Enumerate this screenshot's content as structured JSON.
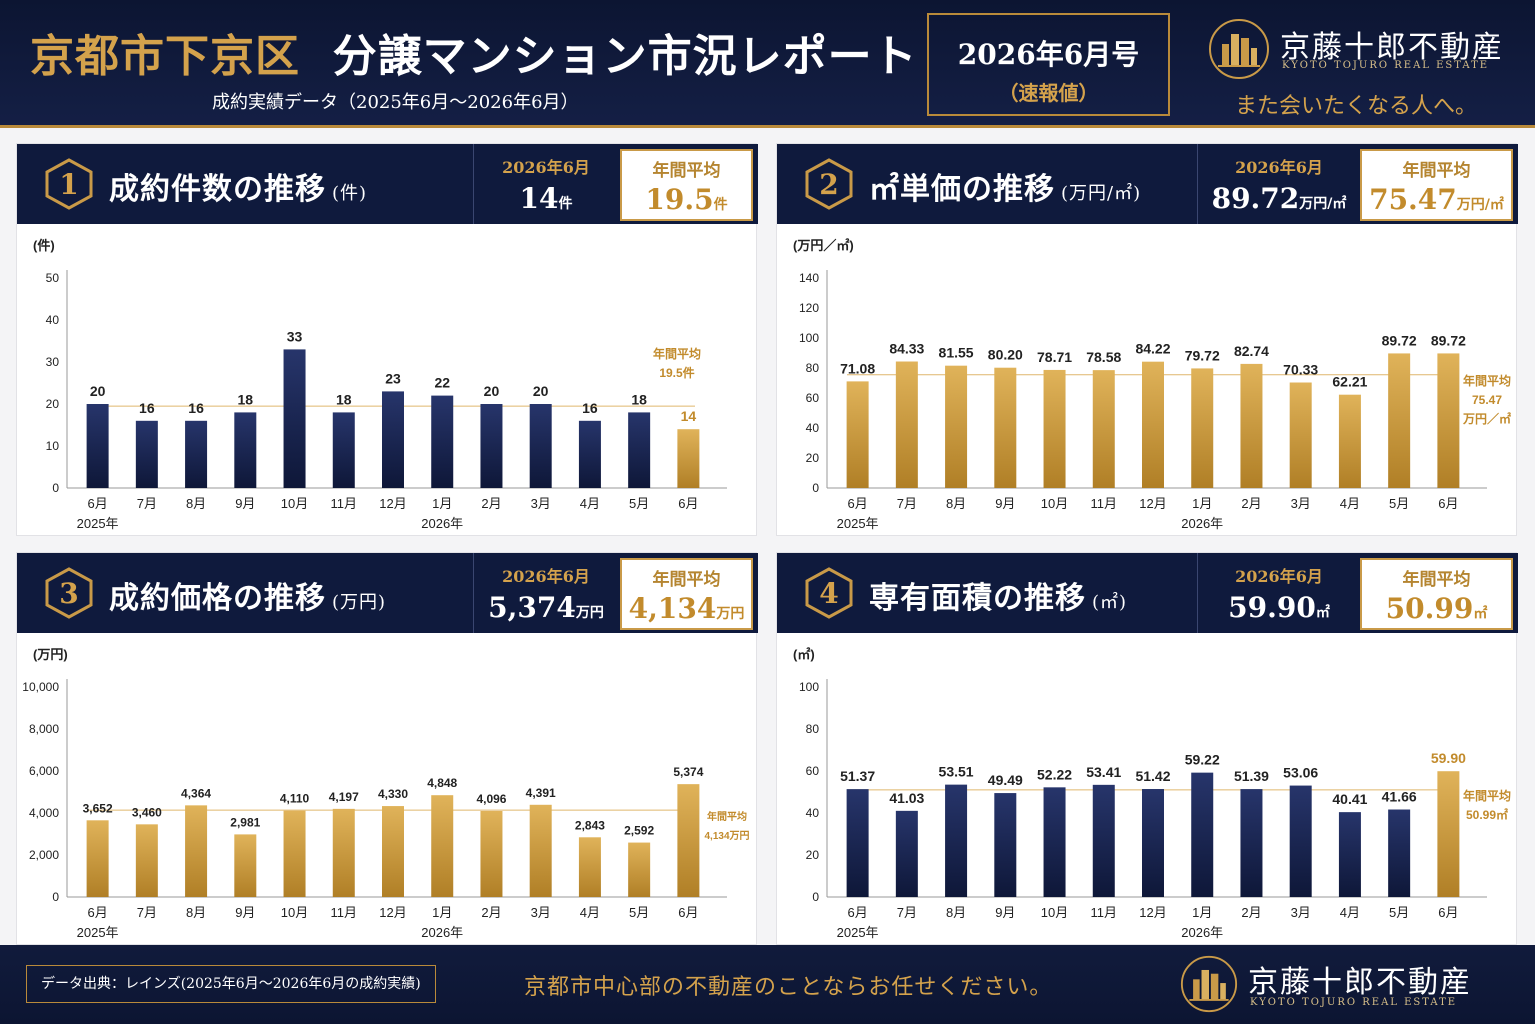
{
  "header": {
    "title_area": "京都市下京区",
    "title_main": "分譲マンション市況レポート",
    "subtitle": "成約実績データ（2025年6月～2026年6月）",
    "issue": "2026年6月号",
    "issue_note": "（速報値）",
    "brand_name": "京藤十郎不動産",
    "brand_en": "KYOTO TOJURO REAL ESTATE",
    "tagline": "また会いたくなる人へ。"
  },
  "panels": [
    {
      "num": "1",
      "title": "成約件数の推移",
      "unit": "(件)",
      "current_label": "2026年6月",
      "current_value": "14",
      "current_unit": "件",
      "avg_label": "年間平均",
      "avg_value": "19.5",
      "avg_unit": "件"
    },
    {
      "num": "2",
      "title": "㎡単価の推移",
      "unit": "(万円/㎡)",
      "current_label": "2026年6月",
      "current_value": "89.72",
      "current_unit": "万円/㎡",
      "avg_label": "年間平均",
      "avg_value": "75.47",
      "avg_unit": "万円/㎡"
    },
    {
      "num": "3",
      "title": "成約価格の推移",
      "unit": "(万円)",
      "current_label": "2026年6月",
      "current_value": "5,374",
      "current_unit": "万円",
      "avg_label": "年間平均",
      "avg_value": "4,134",
      "avg_unit": "万円"
    },
    {
      "num": "4",
      "title": "専有面積の推移",
      "unit": "(㎡)",
      "current_label": "2026年6月",
      "current_value": "59.90",
      "current_unit": "㎡",
      "avg_label": "年間平均",
      "avg_value": "50.99",
      "avg_unit": "㎡"
    }
  ],
  "chart_data": [
    {
      "type": "bar",
      "ylabel": "(件)",
      "ylim": [
        0,
        50
      ],
      "yticks": [
        0,
        10,
        20,
        30,
        40,
        50
      ],
      "categories": [
        "6月",
        "7月",
        "8月",
        "9月",
        "10月",
        "11月",
        "12月",
        "1月",
        "2月",
        "3月",
        "4月",
        "5月",
        "6月"
      ],
      "year_labels": [
        {
          "index": 0,
          "text": "2025年"
        },
        {
          "index": 7,
          "text": "2026年"
        }
      ],
      "values": [
        20,
        16,
        16,
        18,
        33,
        18,
        23,
        22,
        20,
        20,
        16,
        18,
        14
      ],
      "value_labels": [
        "20",
        "16",
        "16",
        "18",
        "33",
        "18",
        "23",
        "22",
        "20",
        "20",
        "16",
        "18",
        "14"
      ],
      "average": 19.5,
      "average_label": [
        "年間平均",
        "19.5件"
      ],
      "bar_color": "navy",
      "highlight_last": true
    },
    {
      "type": "bar",
      "ylabel": "(万円／㎡)",
      "ylim": [
        0,
        140
      ],
      "yticks": [
        0,
        20,
        40,
        60,
        80,
        100,
        120,
        140
      ],
      "categories": [
        "6月",
        "7月",
        "8月",
        "9月",
        "10月",
        "11月",
        "12月",
        "1月",
        "2月",
        "3月",
        "4月",
        "5月",
        "6月"
      ],
      "year_labels": [
        {
          "index": 0,
          "text": "2025年"
        },
        {
          "index": 7,
          "text": "2026年"
        }
      ],
      "values": [
        71.08,
        84.33,
        81.55,
        80.2,
        78.71,
        78.58,
        84.22,
        79.72,
        82.74,
        70.33,
        62.21,
        89.72,
        89.72
      ],
      "value_labels": [
        "71.08",
        "84.33",
        "81.55",
        "80.20",
        "78.71",
        "78.58",
        "84.22",
        "79.72",
        "82.74",
        "70.33",
        "62.21",
        "89.72",
        "89.72"
      ],
      "average": 75.47,
      "average_label": [
        "年間平均",
        "75.47",
        "万円／㎡"
      ],
      "bar_color": "gold",
      "highlight_last": false
    },
    {
      "type": "bar",
      "ylabel": "(万円)",
      "ylim": [
        0,
        10000
      ],
      "yticks": [
        0,
        2000,
        4000,
        6000,
        8000,
        10000
      ],
      "ytick_labels": [
        "0",
        "2,000",
        "4,000",
        "6,000",
        "8,000",
        "10,000"
      ],
      "categories": [
        "6月",
        "7月",
        "8月",
        "9月",
        "10月",
        "11月",
        "12月",
        "1月",
        "2月",
        "3月",
        "4月",
        "5月",
        "6月"
      ],
      "year_labels": [
        {
          "index": 0,
          "text": "2025年"
        },
        {
          "index": 7,
          "text": "2026年"
        }
      ],
      "values": [
        3652,
        3460,
        4364,
        2981,
        4110,
        4197,
        4330,
        4848,
        4096,
        4391,
        2843,
        2592,
        5374
      ],
      "value_labels": [
        "3,652",
        "3,460",
        "4,364",
        "2,981",
        "4,110",
        "4,197",
        "4,330",
        "4,848",
        "4,096",
        "4,391",
        "2,843",
        "2,592",
        "5,374"
      ],
      "average": 4134,
      "average_label": [
        "年間平均",
        "4,134万円"
      ],
      "bar_color": "gold",
      "highlight_last": false
    },
    {
      "type": "bar",
      "ylabel": "(㎡)",
      "ylim": [
        0,
        100
      ],
      "yticks": [
        0,
        20,
        40,
        60,
        80,
        100
      ],
      "categories": [
        "6月",
        "7月",
        "8月",
        "9月",
        "10月",
        "11月",
        "12月",
        "1月",
        "2月",
        "3月",
        "4月",
        "5月",
        "6月"
      ],
      "year_labels": [
        {
          "index": 0,
          "text": "2025年"
        },
        {
          "index": 7,
          "text": "2026年"
        }
      ],
      "values": [
        51.37,
        41.03,
        53.51,
        49.49,
        52.22,
        53.41,
        51.42,
        59.22,
        51.39,
        53.06,
        40.41,
        41.66,
        59.9
      ],
      "value_labels": [
        "51.37",
        "41.03",
        "53.51",
        "49.49",
        "52.22",
        "53.41",
        "51.42",
        "59.22",
        "51.39",
        "53.06",
        "40.41",
        "41.66",
        "59.90"
      ],
      "average": 50.99,
      "average_label": [
        "年間平均",
        "50.99㎡"
      ],
      "bar_color": "navy",
      "highlight_last": true
    }
  ],
  "footer": {
    "source": "データ出典：レインズ(2025年6月～2026年6月の成約実績)",
    "tagline": "京都市中心部の不動産のことならお任せください。",
    "brand_name": "京藤十郎不動産",
    "brand_en": "KYOTO TOJURO REAL ESTATE"
  },
  "colors": {
    "navy": "#1a2550",
    "gold": "#c9952f",
    "accent": "#d4a24c"
  }
}
